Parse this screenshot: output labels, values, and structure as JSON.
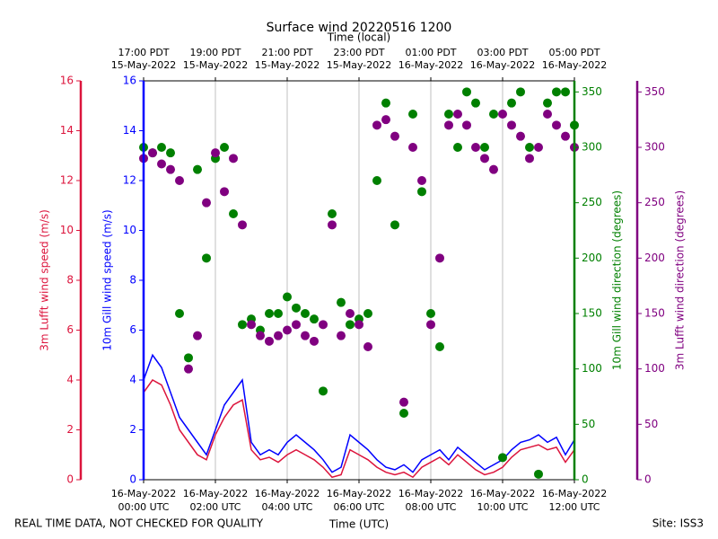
{
  "chart_data": {
    "type": "line",
    "title": "Surface wind 20220516 1200",
    "xlabel": "Time (UTC)",
    "x2label": "Time (local)",
    "footer_left": "REAL TIME DATA, NOT CHECKED FOR QUALITY",
    "footer_right": "Site: ISS3",
    "grid": true,
    "xlim": [
      "2022-05-16 00:00",
      "2022-05-16 12:00"
    ],
    "xticks": [
      {
        "value": "2022-05-16 00:00",
        "label": [
          "16-May-2022",
          "00:00 UTC"
        ]
      },
      {
        "value": "2022-05-16 02:00",
        "label": [
          "16-May-2022",
          "02:00 UTC"
        ]
      },
      {
        "value": "2022-05-16 04:00",
        "label": [
          "16-May-2022",
          "04:00 UTC"
        ]
      },
      {
        "value": "2022-05-16 06:00",
        "label": [
          "16-May-2022",
          "06:00 UTC"
        ]
      },
      {
        "value": "2022-05-16 08:00",
        "label": [
          "16-May-2022",
          "08:00 UTC"
        ]
      },
      {
        "value": "2022-05-16 10:00",
        "label": [
          "16-May-2022",
          "10:00 UTC"
        ]
      },
      {
        "value": "2022-05-16 12:00",
        "label": [
          "16-May-2022",
          "12:00 UTC"
        ]
      }
    ],
    "x2ticks": [
      {
        "value": "2022-05-16 00:00",
        "label": [
          "17:00 PDT",
          "15-May-2022"
        ]
      },
      {
        "value": "2022-05-16 02:00",
        "label": [
          "19:00 PDT",
          "15-May-2022"
        ]
      },
      {
        "value": "2022-05-16 04:00",
        "label": [
          "21:00 PDT",
          "15-May-2022"
        ]
      },
      {
        "value": "2022-05-16 06:00",
        "label": [
          "23:00 PDT",
          "15-May-2022"
        ]
      },
      {
        "value": "2022-05-16 08:00",
        "label": [
          "01:00 PDT",
          "16-May-2022"
        ]
      },
      {
        "value": "2022-05-16 10:00",
        "label": [
          "03:00 PDT",
          "16-May-2022"
        ]
      },
      {
        "value": "2022-05-16 12:00",
        "label": [
          "05:00 PDT",
          "16-May-2022"
        ]
      }
    ],
    "axes": [
      {
        "label": "3m Lufft wind speed (m/s)",
        "color": "#dc143c",
        "lim": [
          0,
          16
        ],
        "ticks": [
          0,
          2,
          4,
          6,
          8,
          10,
          12,
          14,
          16
        ]
      },
      {
        "label": "10m Gill wind speed (m/s)",
        "color": "#0000ff",
        "lim": [
          0,
          16
        ],
        "ticks": [
          0,
          2,
          4,
          6,
          8,
          10,
          12,
          14,
          16
        ]
      },
      {
        "label": "10m Gill wind direction (degrees)",
        "color": "#008000",
        "lim": [
          0,
          360
        ],
        "ticks": [
          0,
          50,
          100,
          150,
          200,
          250,
          300,
          350
        ]
      },
      {
        "label": "3m Lufft wind direction (degrees)",
        "color": "#800080",
        "lim": [
          0,
          360
        ],
        "ticks": [
          0,
          50,
          100,
          150,
          200,
          250,
          300,
          350
        ]
      }
    ],
    "x": [
      "2022-05-16 00:00",
      "2022-05-16 00:15",
      "2022-05-16 00:30",
      "2022-05-16 00:45",
      "2022-05-16 01:00",
      "2022-05-16 01:15",
      "2022-05-16 01:30",
      "2022-05-16 01:45",
      "2022-05-16 02:00",
      "2022-05-16 02:15",
      "2022-05-16 02:30",
      "2022-05-16 02:45",
      "2022-05-16 03:00",
      "2022-05-16 03:15",
      "2022-05-16 03:30",
      "2022-05-16 03:45",
      "2022-05-16 04:00",
      "2022-05-16 04:15",
      "2022-05-16 04:30",
      "2022-05-16 04:45",
      "2022-05-16 05:00",
      "2022-05-16 05:15",
      "2022-05-16 05:30",
      "2022-05-16 05:45",
      "2022-05-16 06:00",
      "2022-05-16 06:15",
      "2022-05-16 06:30",
      "2022-05-16 06:45",
      "2022-05-16 07:00",
      "2022-05-16 07:15",
      "2022-05-16 07:30",
      "2022-05-16 07:45",
      "2022-05-16 08:00",
      "2022-05-16 08:15",
      "2022-05-16 08:30",
      "2022-05-16 08:45",
      "2022-05-16 09:00",
      "2022-05-16 09:15",
      "2022-05-16 09:30",
      "2022-05-16 09:45",
      "2022-05-16 10:00",
      "2022-05-16 10:15",
      "2022-05-16 10:30",
      "2022-05-16 10:45",
      "2022-05-16 11:00",
      "2022-05-16 11:15",
      "2022-05-16 11:30",
      "2022-05-16 11:45",
      "2022-05-16 12:00"
    ],
    "series": [
      {
        "type": "line",
        "axis": 1,
        "color": "#0000ff",
        "values": [
          4,
          5,
          4.5,
          3.5,
          2.5,
          2,
          1.5,
          1,
          2,
          3,
          3.5,
          4,
          1.5,
          1,
          1.2,
          1,
          1.5,
          1.8,
          1.5,
          1.2,
          0.8,
          0.3,
          0.5,
          1.8,
          1.5,
          1.2,
          0.8,
          0.5,
          0.4,
          0.6,
          0.3,
          0.8,
          1,
          1.2,
          0.8,
          1.3,
          1,
          0.7,
          0.4,
          0.6,
          0.8,
          1.2,
          1.5,
          1.6,
          1.8,
          1.5,
          1.7,
          1,
          1.6
        ]
      },
      {
        "type": "line",
        "axis": 0,
        "color": "#dc143c",
        "values": [
          3.5,
          4,
          3.8,
          3,
          2,
          1.5,
          1,
          0.8,
          1.8,
          2.5,
          3,
          3.2,
          1.2,
          0.8,
          0.9,
          0.7,
          1,
          1.2,
          1,
          0.8,
          0.5,
          0.1,
          0.2,
          1.2,
          1,
          0.8,
          0.5,
          0.3,
          0.2,
          0.3,
          0.1,
          0.5,
          0.7,
          0.9,
          0.6,
          1,
          0.7,
          0.4,
          0.2,
          0.3,
          0.5,
          0.9,
          1.2,
          1.3,
          1.4,
          1.2,
          1.3,
          0.7,
          1.2
        ]
      },
      {
        "type": "scatter",
        "axis": 2,
        "color": "#008000",
        "values": [
          300,
          295,
          300,
          295,
          150,
          110,
          280,
          200,
          290,
          300,
          240,
          140,
          145,
          135,
          150,
          150,
          165,
          155,
          150,
          145,
          80,
          240,
          160,
          140,
          145,
          150,
          270,
          340,
          230,
          60,
          330,
          260,
          150,
          120,
          330,
          300,
          350,
          340,
          300,
          330,
          20,
          340,
          350,
          300,
          5,
          340,
          350,
          350,
          320
        ]
      },
      {
        "type": "scatter",
        "axis": 3,
        "color": "#800080",
        "values": [
          290,
          295,
          285,
          280,
          270,
          100,
          130,
          250,
          295,
          260,
          290,
          230,
          140,
          130,
          125,
          130,
          135,
          140,
          130,
          125,
          140,
          230,
          130,
          150,
          140,
          120,
          320,
          325,
          310,
          70,
          300,
          270,
          140,
          200,
          320,
          330,
          320,
          300,
          290,
          280,
          330,
          320,
          310,
          290,
          300,
          330,
          320,
          310,
          300
        ]
      }
    ]
  }
}
